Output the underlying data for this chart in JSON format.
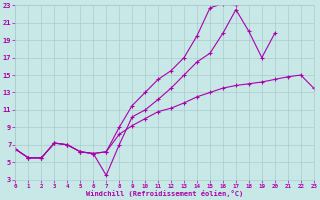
{
  "bg_color": "#c8e8e8",
  "grid_color": "#aacccc",
  "line_color": "#aa00aa",
  "xlim": [
    0,
    23
  ],
  "ylim": [
    3,
    23
  ],
  "xticks": [
    0,
    1,
    2,
    3,
    4,
    5,
    6,
    7,
    8,
    9,
    10,
    11,
    12,
    13,
    14,
    15,
    16,
    17,
    18,
    19,
    20,
    21,
    22,
    23
  ],
  "yticks": [
    3,
    5,
    7,
    9,
    11,
    13,
    15,
    17,
    19,
    21,
    23
  ],
  "xlabel": "Windchill (Refroidissement éolien,°C)",
  "line1_x": [
    0,
    1,
    2,
    3,
    4,
    5,
    6,
    7,
    8,
    9,
    10,
    11,
    12,
    13,
    14,
    15,
    16,
    17
  ],
  "line1_y": [
    6.5,
    5.5,
    5.5,
    7.2,
    7.0,
    6.2,
    6.0,
    6.2,
    9.0,
    11.5,
    13.0,
    14.5,
    15.5,
    17.0,
    19.5,
    22.7,
    23.2,
    23.0
  ],
  "line2_x": [
    0,
    1,
    2,
    3,
    4,
    5,
    6,
    7,
    8,
    9,
    10,
    11,
    12,
    13,
    14,
    15,
    16,
    17,
    18,
    19,
    20
  ],
  "line2_y": [
    6.5,
    5.5,
    5.5,
    7.2,
    7.0,
    6.2,
    6.0,
    3.5,
    7.0,
    10.2,
    11.0,
    12.2,
    13.5,
    15.0,
    16.5,
    17.5,
    19.8,
    22.5,
    20.0,
    17.0,
    19.8
  ],
  "line3_x": [
    0,
    1,
    2,
    3,
    4,
    5,
    6,
    7,
    8,
    9,
    10,
    11,
    12,
    13,
    14,
    15,
    16,
    17,
    18,
    19,
    20,
    21,
    22,
    23
  ],
  "line3_y": [
    6.5,
    5.5,
    5.5,
    7.2,
    7.0,
    6.2,
    6.0,
    6.2,
    8.2,
    9.2,
    10.0,
    10.8,
    11.2,
    11.8,
    12.5,
    13.0,
    13.5,
    13.8,
    14.0,
    14.2,
    14.5,
    14.8,
    15.0,
    13.5
  ]
}
